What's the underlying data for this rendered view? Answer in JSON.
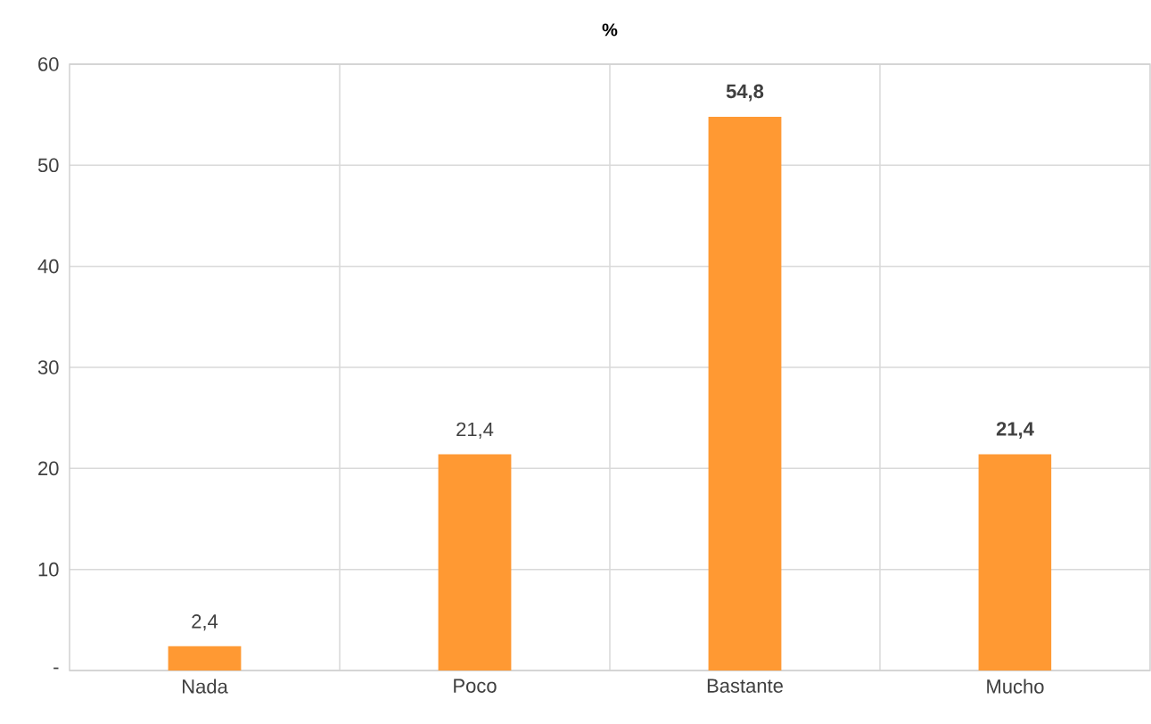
{
  "chart_data": {
    "type": "bar",
    "title": "%",
    "categories": [
      "Nada",
      "Poco",
      "Bastante",
      "Mucho"
    ],
    "values": [
      2.4,
      21.4,
      54.8,
      21.4
    ],
    "color": "#ff9933",
    "value_labels": [
      "2,4",
      "21,4",
      "**54,8**",
      "**21,4**"
    ],
    "ylim": [
      0,
      60
    ],
    "yticks": [
      {
        "value": 0,
        "label": "-"
      },
      10,
      20,
      30,
      40,
      50,
      60
    ],
    "grid": true
  }
}
